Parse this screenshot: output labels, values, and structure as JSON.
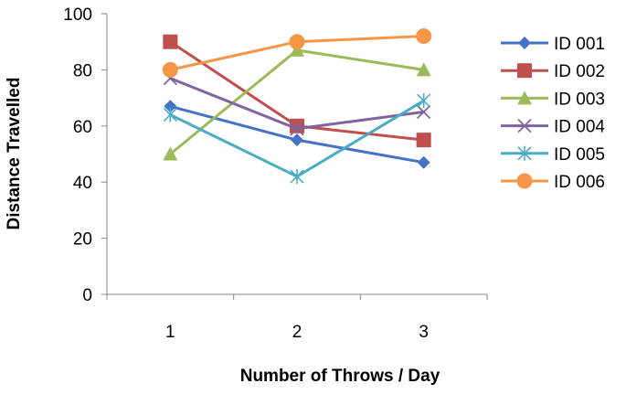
{
  "chart_data": {
    "type": "line",
    "title": "",
    "xlabel": "Number of Throws / Day",
    "ylabel": "Distance Travelled",
    "x": [
      1,
      2,
      3
    ],
    "ylim": [
      0,
      100
    ],
    "yticks": [
      0,
      20,
      40,
      60,
      80,
      100
    ],
    "grid": false,
    "legend_position": "right",
    "series": [
      {
        "name": "ID 001",
        "values": [
          67,
          55,
          47
        ],
        "color": "#4472C4",
        "marker": "diamond"
      },
      {
        "name": "ID 002",
        "values": [
          90,
          60,
          55
        ],
        "color": "#C0504D",
        "marker": "square"
      },
      {
        "name": "ID 003",
        "values": [
          50,
          87,
          80
        ],
        "color": "#9BBB59",
        "marker": "triangle"
      },
      {
        "name": "ID 004",
        "values": [
          77,
          59,
          65
        ],
        "color": "#8064A2",
        "marker": "x"
      },
      {
        "name": "ID 005",
        "values": [
          64,
          42,
          69
        ],
        "color": "#4BACC6",
        "marker": "star"
      },
      {
        "name": "ID 006",
        "values": [
          80,
          90,
          92
        ],
        "color": "#F79646",
        "marker": "circle"
      }
    ]
  }
}
